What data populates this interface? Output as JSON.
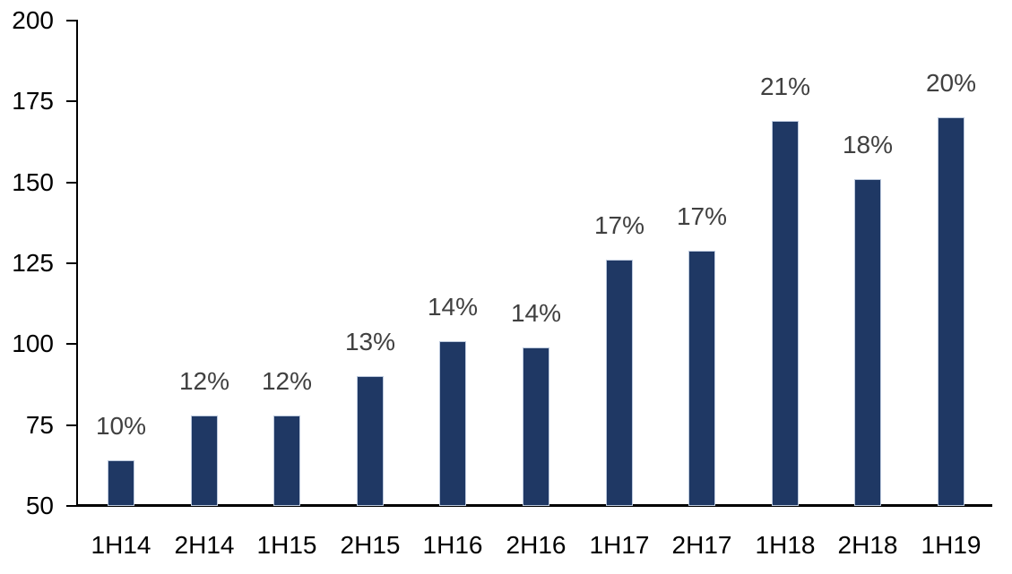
{
  "chart_data": {
    "type": "bar",
    "title": "",
    "xlabel": "",
    "ylabel": "",
    "categories": [
      "1H14",
      "2H14",
      "1H15",
      "2H15",
      "1H16",
      "2H16",
      "1H17",
      "2H17",
      "1H18",
      "2H18",
      "1H19"
    ],
    "values": [
      64,
      78,
      78,
      90,
      101,
      99,
      126,
      129,
      169,
      151,
      170
    ],
    "data_labels": [
      "10%",
      "12%",
      "12%",
      "13%",
      "14%",
      "14%",
      "17%",
      "17%",
      "21%",
      "18%",
      "20%"
    ],
    "yticks": [
      50,
      75,
      100,
      125,
      150,
      175,
      200
    ],
    "ylim": [
      50,
      200
    ],
    "grid": false,
    "legend": false,
    "legend_position": "none",
    "colors": {
      "bar_fill": "#1F3864",
      "bar_border": "#BCC9DD",
      "data_label": "#404040",
      "axis_text": "#000000",
      "axis_line": "#000000",
      "background": "#FFFFFF"
    }
  }
}
